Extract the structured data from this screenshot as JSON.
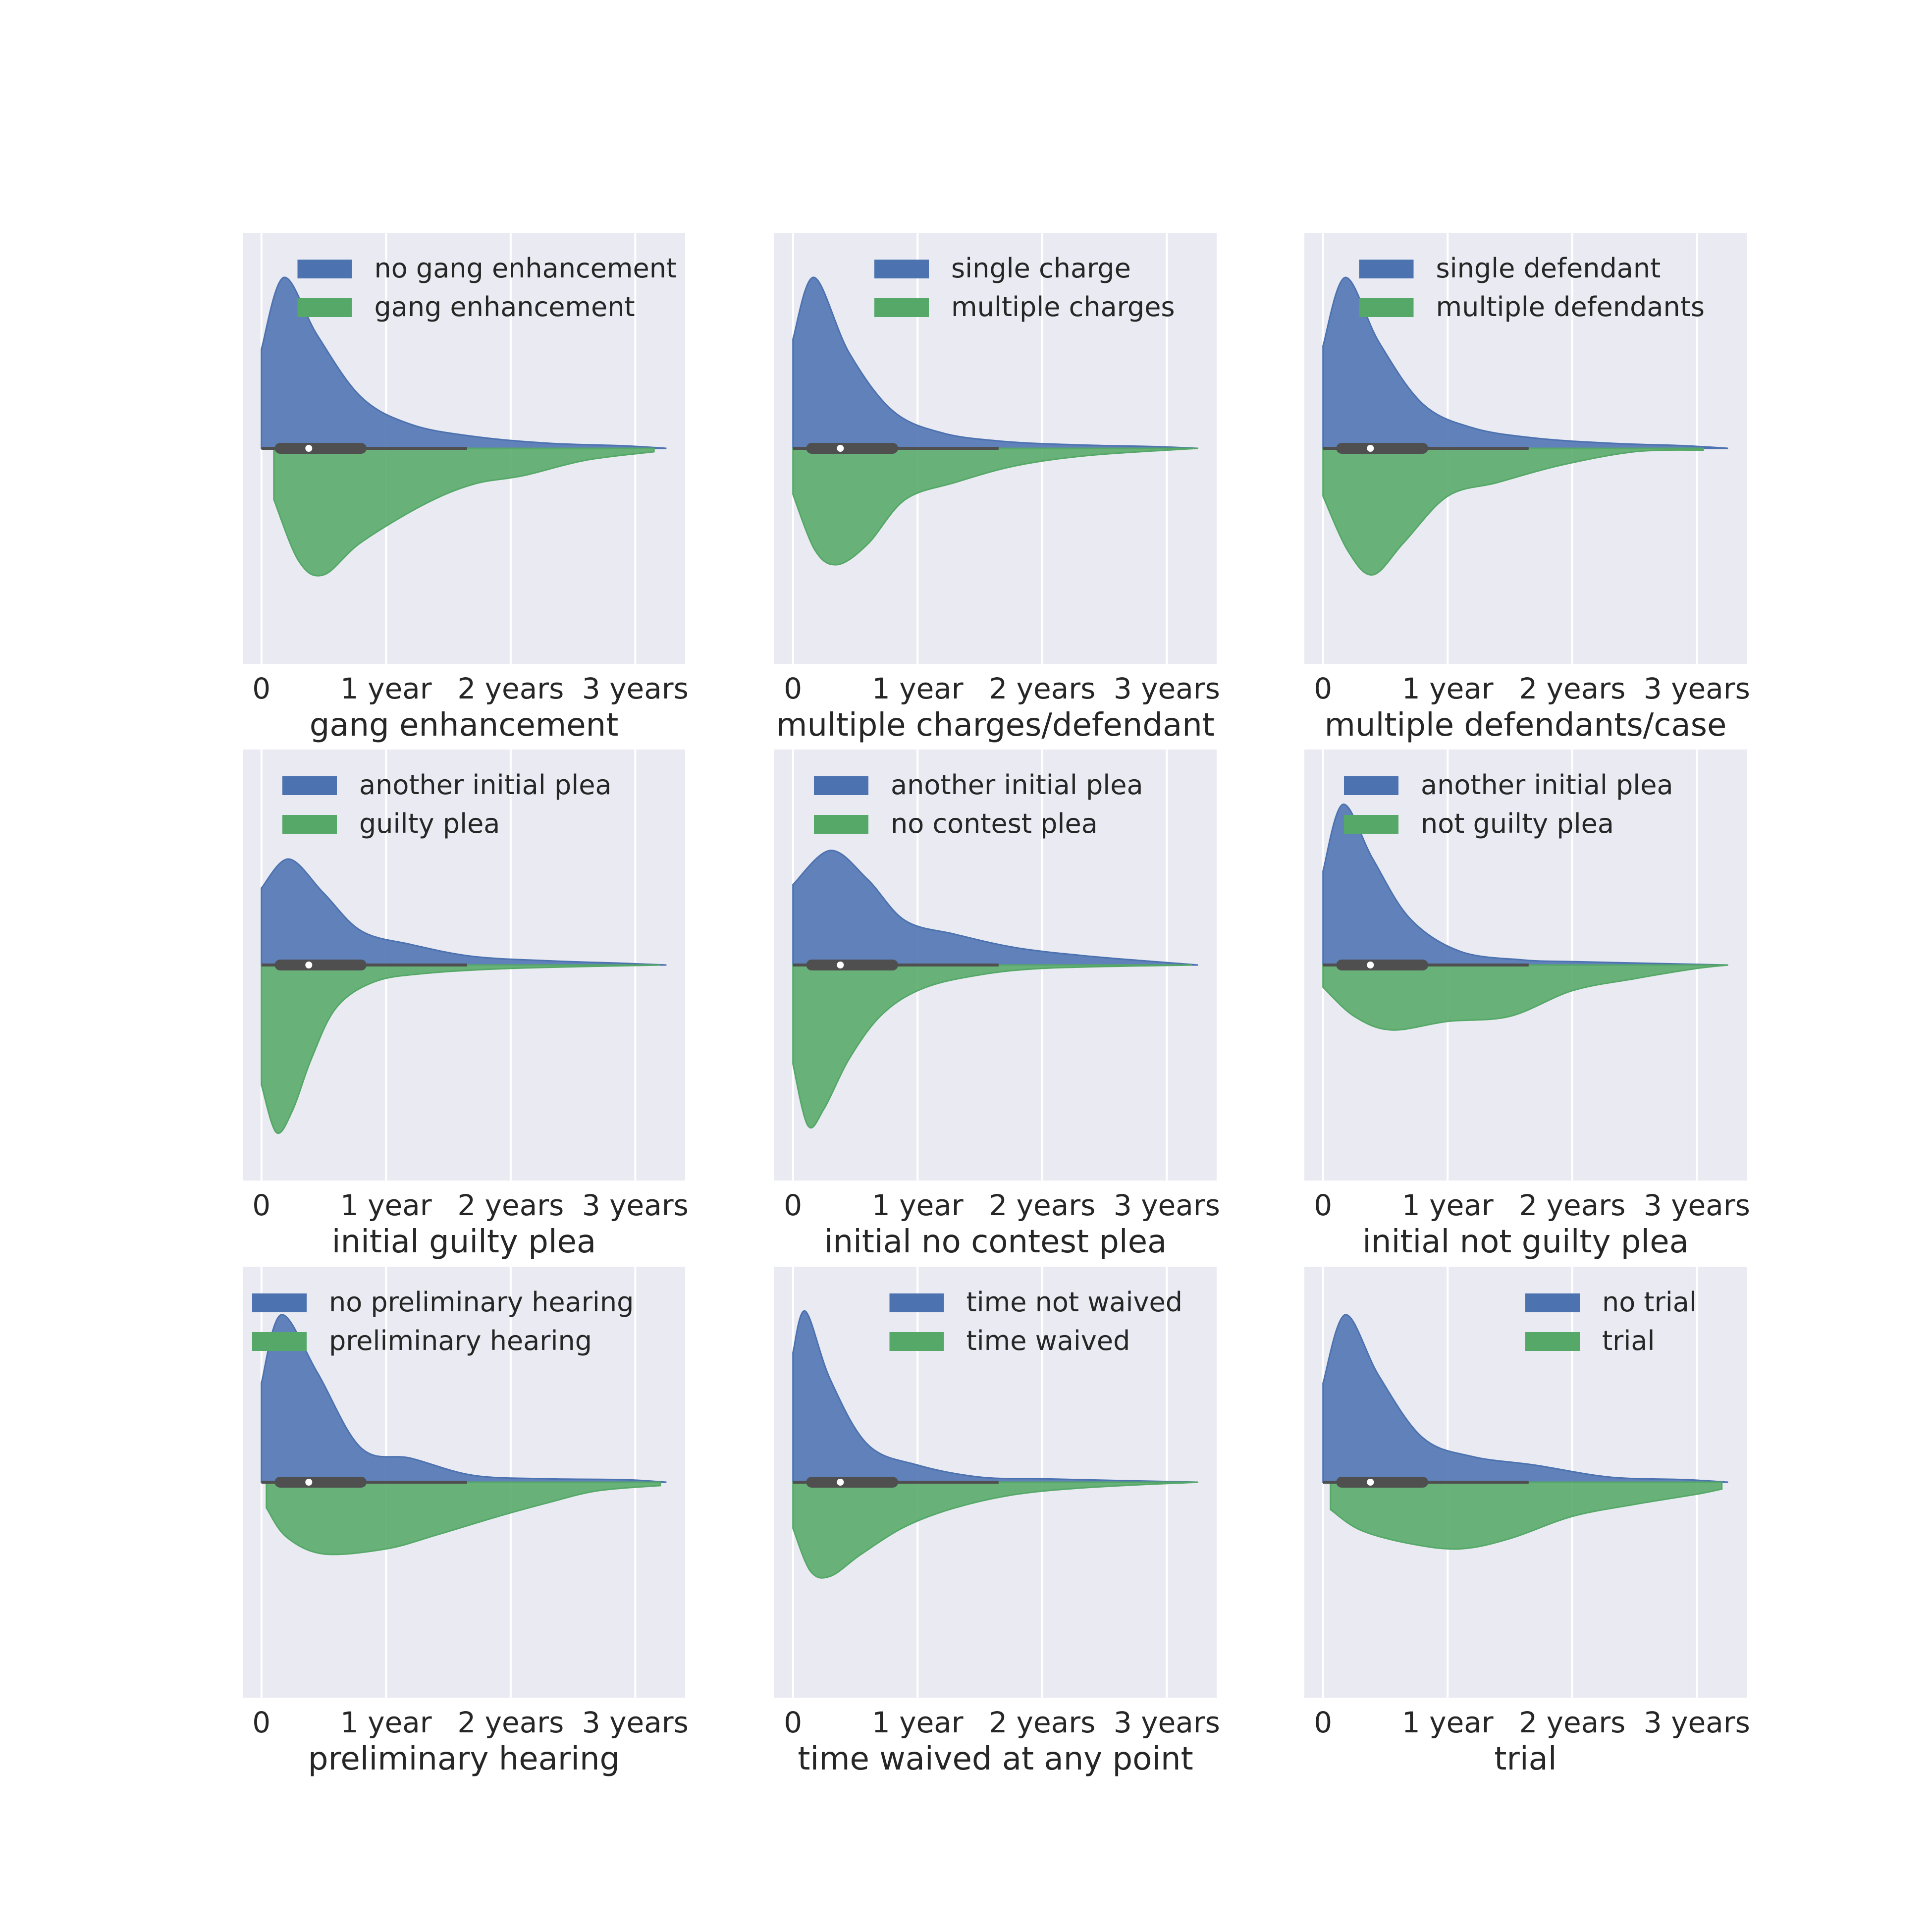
{
  "colors": {
    "background": "#ffffff",
    "panel": "#eaeaf2",
    "grid": "#ffffff",
    "series_top": "#4c72b0",
    "series_bottom": "#55a868",
    "box": "#4f4f4f",
    "median": "#ffffff"
  },
  "chart_data": [
    {
      "type": "violin",
      "xlabel": "gang enhancement",
      "xticks": [
        0,
        1,
        2,
        3
      ],
      "xtick_labels": [
        "0",
        "1 year",
        "2 years",
        "3 years"
      ],
      "xlim": [
        -0.15,
        3.4
      ],
      "grid": true,
      "legend_position": "top-right",
      "box": {
        "q1": 0.15,
        "median": 0.38,
        "q3": 0.8,
        "whisker_high": 1.65
      },
      "series": [
        {
          "name": "no gang enhancement",
          "side": "top",
          "x": [
            0,
            0.18,
            0.45,
            0.8,
            1.2,
            1.7,
            2.3,
            2.9,
            3.25
          ],
          "density": [
            0.58,
            1.0,
            0.66,
            0.3,
            0.14,
            0.07,
            0.03,
            0.015,
            0.0
          ]
        },
        {
          "name": "gang enhancement",
          "side": "bottom",
          "x": [
            0.1,
            0.3,
            0.5,
            0.8,
            1.3,
            1.7,
            2.1,
            2.6,
            3.15
          ],
          "density": [
            0.3,
            0.66,
            0.74,
            0.55,
            0.33,
            0.21,
            0.16,
            0.07,
            0.02
          ]
        }
      ]
    },
    {
      "type": "violin",
      "xlabel": "multiple charges/defendant",
      "xticks": [
        0,
        1,
        2,
        3
      ],
      "xtick_labels": [
        "0",
        "1 year",
        "2 years",
        "3 years"
      ],
      "xlim": [
        -0.15,
        3.4
      ],
      "grid": true,
      "legend_position": "top-right",
      "box": {
        "q1": 0.15,
        "median": 0.38,
        "q3": 0.8,
        "whisker_high": 1.65
      },
      "series": [
        {
          "name": "single charge",
          "side": "top",
          "x": [
            0,
            0.17,
            0.45,
            0.8,
            1.2,
            1.7,
            2.3,
            2.9,
            3.25
          ],
          "density": [
            0.64,
            1.0,
            0.56,
            0.22,
            0.09,
            0.04,
            0.02,
            0.01,
            0.0
          ]
        },
        {
          "name": "multiple charges",
          "side": "bottom",
          "x": [
            0,
            0.18,
            0.36,
            0.6,
            0.9,
            1.3,
            1.8,
            2.4,
            3.25
          ],
          "density": [
            0.27,
            0.6,
            0.68,
            0.56,
            0.3,
            0.2,
            0.1,
            0.04,
            0.0
          ]
        }
      ]
    },
    {
      "type": "violin",
      "xlabel": "multiple defendants/case",
      "xticks": [
        0,
        1,
        2,
        3
      ],
      "xtick_labels": [
        "0",
        "1 year",
        "2 years",
        "3 years"
      ],
      "xlim": [
        -0.15,
        3.4
      ],
      "grid": true,
      "legend_position": "top-right",
      "box": {
        "q1": 0.15,
        "median": 0.38,
        "q3": 0.8,
        "whisker_high": 1.65
      },
      "series": [
        {
          "name": "single defendant",
          "side": "top",
          "x": [
            0,
            0.18,
            0.45,
            0.8,
            1.2,
            1.7,
            2.3,
            2.9,
            3.25
          ],
          "density": [
            0.6,
            1.0,
            0.62,
            0.26,
            0.12,
            0.06,
            0.03,
            0.015,
            0.0
          ]
        },
        {
          "name": "multiple defendants",
          "side": "bottom",
          "x": [
            0,
            0.2,
            0.4,
            0.65,
            1.0,
            1.4,
            1.9,
            2.5,
            3.05
          ],
          "density": [
            0.28,
            0.6,
            0.74,
            0.55,
            0.28,
            0.2,
            0.1,
            0.02,
            0.01
          ]
        }
      ]
    },
    {
      "type": "violin",
      "xlabel": "initial guilty plea",
      "xticks": [
        0,
        1,
        2,
        3
      ],
      "xtick_labels": [
        "0",
        "1 year",
        "2 years",
        "3 years"
      ],
      "xlim": [
        -0.15,
        3.4
      ],
      "grid": true,
      "legend_position": "top-right",
      "box": {
        "q1": 0.15,
        "median": 0.38,
        "q3": 0.8,
        "whisker_high": 1.65
      },
      "series": [
        {
          "name": "another initial plea",
          "side": "top",
          "x": [
            0,
            0.22,
            0.5,
            0.8,
            1.2,
            1.7,
            2.3,
            2.9,
            3.25
          ],
          "density": [
            0.45,
            0.62,
            0.42,
            0.2,
            0.12,
            0.05,
            0.025,
            0.01,
            0.0
          ]
        },
        {
          "name": "guilty plea",
          "side": "bottom",
          "x": [
            0,
            0.12,
            0.25,
            0.4,
            0.6,
            0.9,
            1.3,
            2.0,
            3.2
          ],
          "density": [
            0.7,
            0.98,
            0.85,
            0.55,
            0.25,
            0.1,
            0.05,
            0.02,
            0.0
          ]
        }
      ]
    },
    {
      "type": "violin",
      "xlabel": "initial no contest plea",
      "xticks": [
        0,
        1,
        2,
        3
      ],
      "xtick_labels": [
        "0",
        "1 year",
        "2 years",
        "3 years"
      ],
      "xlim": [
        -0.15,
        3.4
      ],
      "grid": true,
      "legend_position": "top-right",
      "box": {
        "q1": 0.15,
        "median": 0.38,
        "q3": 0.8,
        "whisker_high": 1.65
      },
      "series": [
        {
          "name": "another initial plea",
          "side": "top",
          "x": [
            0,
            0.3,
            0.6,
            0.9,
            1.3,
            1.8,
            2.4,
            2.9,
            3.25
          ],
          "density": [
            0.47,
            0.67,
            0.5,
            0.26,
            0.18,
            0.1,
            0.05,
            0.02,
            0.0
          ]
        },
        {
          "name": "no contest plea",
          "side": "bottom",
          "x": [
            0,
            0.12,
            0.25,
            0.45,
            0.7,
            1.0,
            1.4,
            2.0,
            3.2
          ],
          "density": [
            0.58,
            0.94,
            0.84,
            0.55,
            0.3,
            0.15,
            0.07,
            0.02,
            0.0
          ]
        }
      ]
    },
    {
      "type": "violin",
      "xlabel": "initial not guilty plea",
      "xticks": [
        0,
        1,
        2,
        3
      ],
      "xtick_labels": [
        "0",
        "1 year",
        "2 years",
        "3 years"
      ],
      "xlim": [
        -0.15,
        3.4
      ],
      "grid": true,
      "legend_position": "top-right",
      "box": {
        "q1": 0.15,
        "median": 0.38,
        "q3": 0.8,
        "whisker_high": 1.65
      },
      "series": [
        {
          "name": "another initial plea",
          "side": "top",
          "x": [
            0,
            0.16,
            0.4,
            0.7,
            1.1,
            1.6,
            2.0,
            2.6,
            3.25
          ],
          "density": [
            0.55,
            0.94,
            0.62,
            0.27,
            0.08,
            0.03,
            0.02,
            0.01,
            0.0
          ]
        },
        {
          "name": "not guilty plea",
          "side": "bottom",
          "x": [
            0,
            0.25,
            0.55,
            1.0,
            1.5,
            2.0,
            2.5,
            3.0,
            3.25
          ],
          "density": [
            0.13,
            0.3,
            0.38,
            0.33,
            0.3,
            0.15,
            0.08,
            0.02,
            0.0
          ]
        }
      ]
    },
    {
      "type": "violin",
      "xlabel": "preliminary hearing",
      "xticks": [
        0,
        1,
        2,
        3
      ],
      "xtick_labels": [
        "0",
        "1 year",
        "2 years",
        "3 years"
      ],
      "xlim": [
        -0.15,
        3.4
      ],
      "grid": true,
      "legend_position": "top-right",
      "box": {
        "q1": 0.15,
        "median": 0.38,
        "q3": 0.8,
        "whisker_high": 1.65
      },
      "series": [
        {
          "name": "no preliminary hearing",
          "side": "top",
          "x": [
            0,
            0.16,
            0.45,
            0.8,
            1.2,
            1.7,
            2.3,
            2.9,
            3.25
          ],
          "density": [
            0.58,
            0.98,
            0.64,
            0.2,
            0.14,
            0.04,
            0.02,
            0.015,
            0.0
          ]
        },
        {
          "name": "preliminary hearing",
          "side": "bottom",
          "x": [
            0.04,
            0.2,
            0.5,
            1.0,
            1.4,
            1.9,
            2.3,
            2.7,
            3.2
          ],
          "density": [
            0.15,
            0.32,
            0.42,
            0.39,
            0.31,
            0.2,
            0.12,
            0.05,
            0.02
          ]
        }
      ]
    },
    {
      "type": "violin",
      "xlabel": "time waived at any point",
      "xticks": [
        0,
        1,
        2,
        3
      ],
      "xtick_labels": [
        "0",
        "1 year",
        "2 years",
        "3 years"
      ],
      "xlim": [
        -0.15,
        3.4
      ],
      "grid": true,
      "legend_position": "top-right",
      "box": {
        "q1": 0.15,
        "median": 0.38,
        "q3": 0.8,
        "whisker_high": 1.65
      },
      "series": [
        {
          "name": "time not waived",
          "side": "top",
          "x": [
            0,
            0.1,
            0.3,
            0.6,
            1.0,
            1.5,
            2.0,
            2.6,
            3.25
          ],
          "density": [
            0.76,
            1.0,
            0.6,
            0.22,
            0.1,
            0.03,
            0.02,
            0.01,
            0.0
          ]
        },
        {
          "name": "time waived",
          "side": "bottom",
          "x": [
            0,
            0.14,
            0.3,
            0.55,
            0.9,
            1.3,
            1.8,
            2.4,
            3.25
          ],
          "density": [
            0.27,
            0.52,
            0.55,
            0.42,
            0.26,
            0.15,
            0.07,
            0.03,
            0.0
          ]
        }
      ]
    },
    {
      "type": "violin",
      "xlabel": "trial",
      "xticks": [
        0,
        1,
        2,
        3
      ],
      "xtick_labels": [
        "0",
        "1 year",
        "2 years",
        "3 years"
      ],
      "xlim": [
        -0.15,
        3.4
      ],
      "grid": true,
      "legend_position": "top-right",
      "box": {
        "q1": 0.15,
        "median": 0.38,
        "q3": 0.8,
        "whisker_high": 1.65
      },
      "series": [
        {
          "name": "no trial",
          "side": "top",
          "x": [
            0,
            0.18,
            0.45,
            0.8,
            1.2,
            1.7,
            2.3,
            2.9,
            3.25
          ],
          "density": [
            0.58,
            0.98,
            0.62,
            0.26,
            0.15,
            0.1,
            0.03,
            0.015,
            0.0
          ]
        },
        {
          "name": "trial",
          "side": "bottom",
          "x": [
            0.06,
            0.3,
            0.7,
            1.1,
            1.5,
            2.0,
            2.5,
            3.0,
            3.2
          ],
          "density": [
            0.16,
            0.28,
            0.36,
            0.39,
            0.33,
            0.2,
            0.13,
            0.07,
            0.04
          ]
        }
      ]
    }
  ]
}
